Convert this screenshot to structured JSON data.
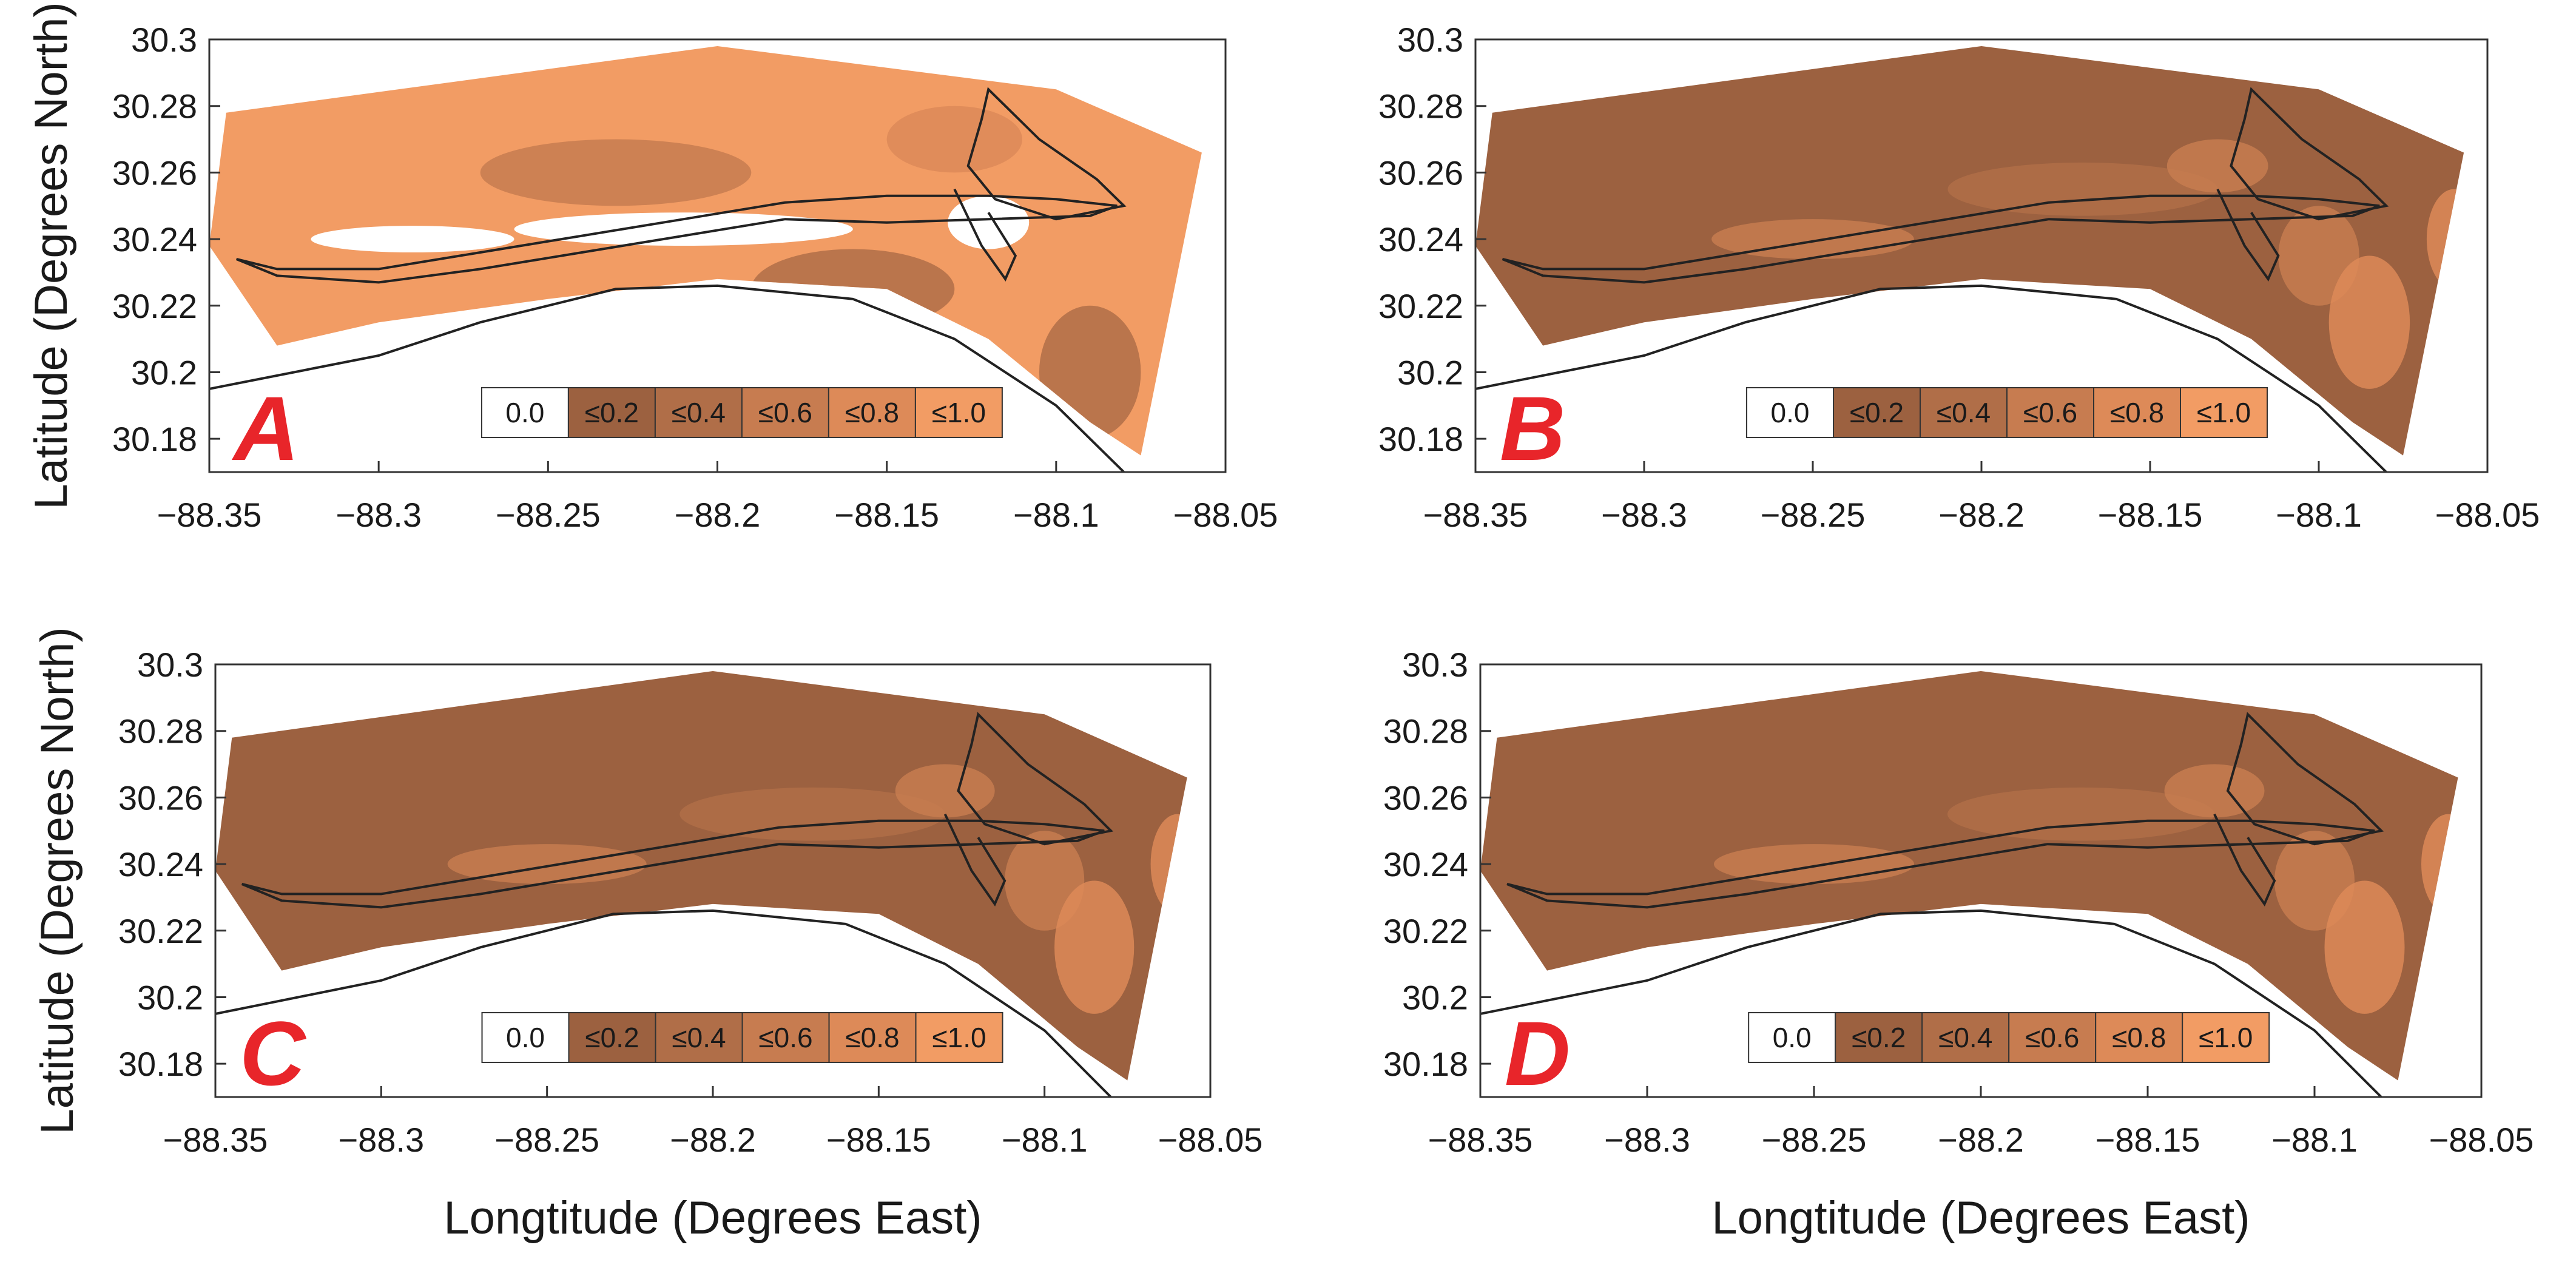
{
  "figure": {
    "y_axis_title": "Latitude (Degrees North)",
    "x_axis_title": "Longtitude (Degrees East)",
    "legend": {
      "items": [
        {
          "label": "0.0",
          "color": "#ffffff"
        },
        {
          "label": "≤0.2",
          "color": "#9c6140"
        },
        {
          "label": "≤0.4",
          "color": "#b06e48"
        },
        {
          "label": "≤0.6",
          "color": "#c77c50"
        },
        {
          "label": "≤0.8",
          "color": "#dd8a58"
        },
        {
          "label": "≤1.0",
          "color": "#f29c64"
        }
      ]
    }
  },
  "chart_data": [
    {
      "type": "heatmap",
      "panel": "A",
      "xlabel": "",
      "ylabel": "Latitude (Degrees North)",
      "xlim": [
        -88.35,
        -88.05
      ],
      "ylim": [
        30.17,
        30.3
      ],
      "x_ticks": [
        "−88.35",
        "−88.3",
        "−88.25",
        "−88.2",
        "−88.15",
        "−88.1",
        "−88.05"
      ],
      "y_ticks": [
        "30.3",
        "30.28",
        "30.26",
        "30.24",
        "30.22",
        "30.2",
        "30.18"
      ],
      "dominant_class": "≤1.0"
    },
    {
      "type": "heatmap",
      "panel": "B",
      "xlabel": "",
      "ylabel": "",
      "xlim": [
        -88.35,
        -88.05
      ],
      "ylim": [
        30.17,
        30.3
      ],
      "x_ticks": [
        "−88.35",
        "−88.3",
        "−88.25",
        "−88.2",
        "−88.15",
        "−88.1",
        "−88.05"
      ],
      "y_ticks": [
        "30.3",
        "30.28",
        "30.26",
        "30.24",
        "30.22",
        "30.2",
        "30.18"
      ],
      "dominant_class": "≤0.2"
    },
    {
      "type": "heatmap",
      "panel": "C",
      "xlabel": "Longtitude (Degrees East)",
      "ylabel": "Latitude (Degrees North)",
      "xlim": [
        -88.35,
        -88.05
      ],
      "ylim": [
        30.17,
        30.3
      ],
      "x_ticks": [
        "−88.35",
        "−88.3",
        "−88.25",
        "−88.2",
        "−88.15",
        "−88.1",
        "−88.05"
      ],
      "y_ticks": [
        "30.3",
        "30.28",
        "30.26",
        "30.24",
        "30.22",
        "30.2",
        "30.18"
      ],
      "dominant_class": "≤0.2"
    },
    {
      "type": "heatmap",
      "panel": "D",
      "xlabel": "Longtitude (Degrees East)",
      "ylabel": "",
      "xlim": [
        -88.35,
        -88.05
      ],
      "ylim": [
        30.17,
        30.3
      ],
      "x_ticks": [
        "−88.35",
        "−88.3",
        "−88.25",
        "−88.2",
        "−88.15",
        "−88.1",
        "−88.05"
      ],
      "y_ticks": [
        "30.3",
        "30.28",
        "30.26",
        "30.24",
        "30.22",
        "30.2",
        "30.18"
      ],
      "dominant_class": "≤0.2"
    }
  ]
}
